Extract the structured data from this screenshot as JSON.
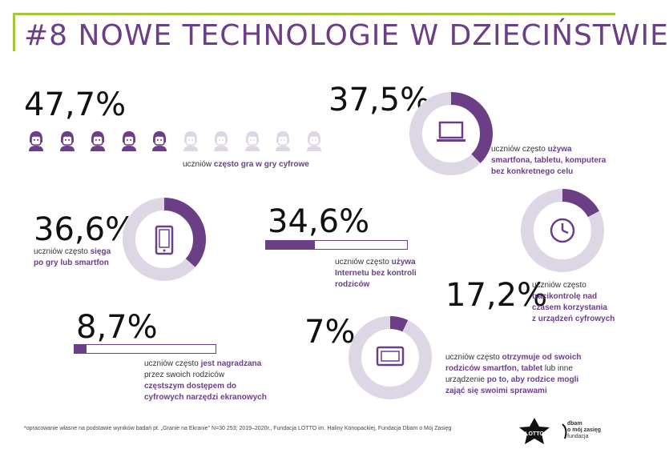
{
  "title": "#8 NOWE TECHNOLOGIE W DZIECIŃSTWIE",
  "colors": {
    "accent": "#6b3f85",
    "light": "#ddd6e4",
    "green": "#a5c639"
  },
  "stats": {
    "games": {
      "value": "47,7%",
      "fraction": 0.477,
      "icons_total": 10,
      "icons_filled": 5,
      "desc_a": "uczniów ",
      "desc_b": "często gra w gry cyfrowe"
    },
    "devices_aimless": {
      "value": "37,5%",
      "fraction": 0.375,
      "icon": "laptop-icon",
      "l1a": "uczniów często ",
      "l1b": "używa",
      "l2": "smartfona, tabletu, komputera",
      "l3": "bez konkretnego celu"
    },
    "reach": {
      "value": "36,6%",
      "fraction": 0.366,
      "icon": "smartphone-icon",
      "l1a": "uczniów często ",
      "l1b": "sięga",
      "l2": "po gry lub smartfon"
    },
    "internet": {
      "value": "34,6%",
      "fraction": 0.346,
      "l1a": "uczniów często ",
      "l1b": "używa",
      "l2": "Internetu bez kontroli",
      "l3": "rodziców"
    },
    "time_control": {
      "value": "17,2%",
      "fraction": 0.172,
      "icon": "clock-icon",
      "l1": "uczniów często",
      "l2": "tracikontrolę nad",
      "l3": "czasem korzystania",
      "l4": "z urządzeń cyfrowych"
    },
    "reward": {
      "value": "8,7%",
      "fraction": 0.087,
      "l1a": "uczniów często ",
      "l1b": "jest nagradzana",
      "l2": "przez swoich rodziców",
      "l3": "częstszym dostępem do",
      "l4": "cyfrowych narzędzi ekranowych"
    },
    "receives": {
      "value": "7%",
      "fraction": 0.07,
      "icon": "tablet-icon",
      "l1a": "uczniów często ",
      "l1b": "otrzymuje od swoich",
      "l2a": "rodziców smartfon, tablet",
      "l2b": " lub inne",
      "l3a": "urządzenie ",
      "l3b": "po to, aby rodzice mogli",
      "l4": "zająć się swoimi sprawami"
    }
  },
  "footer": "*opracowanie własne na podstawie wyników badań pt. „Granie na Ekranie\" N=30 253; 2019–2020r., Fundacja LOTTO im. Haliny Konopackiej, Fundacja Dbam o Mój Zasięg",
  "logos": {
    "lotto": "LOTTO",
    "dbam_1": "dbam",
    "dbam_2": "o mój zasięg",
    "dbam_3": "fundacja"
  }
}
